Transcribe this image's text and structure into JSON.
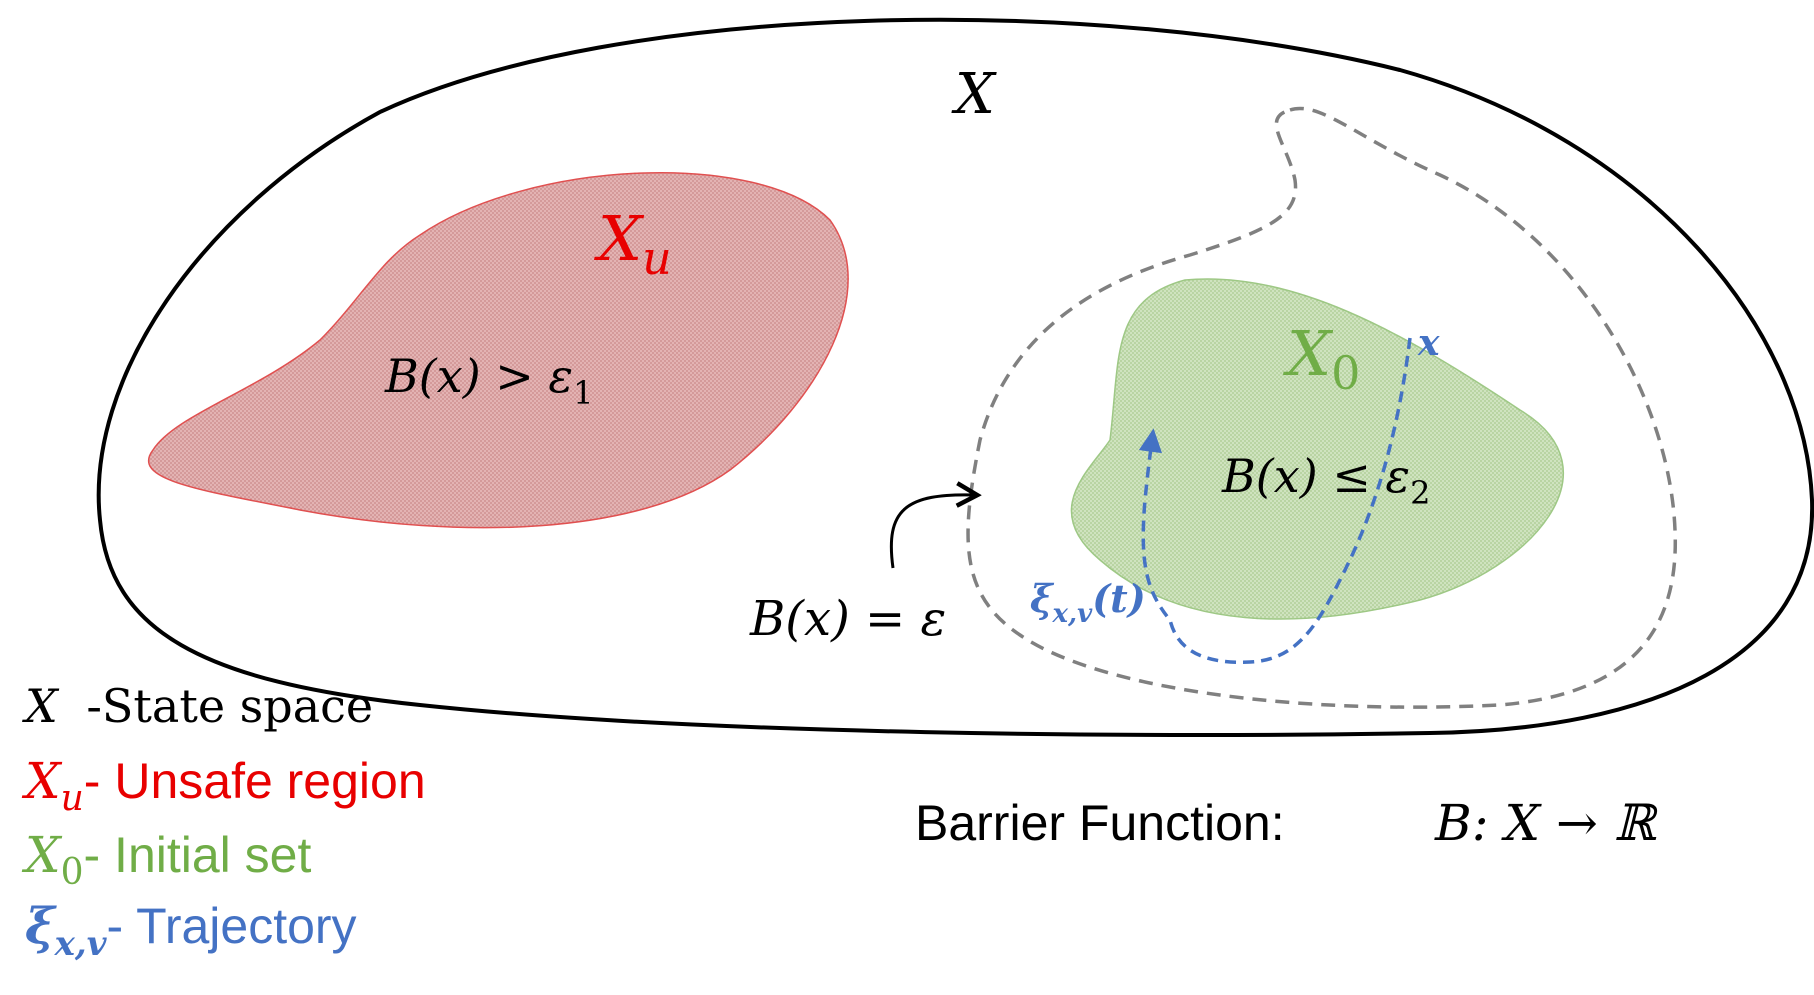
{
  "diagram": {
    "state_space_label": "X",
    "unsafe_region": {
      "symbol": "X",
      "subscript": "u",
      "condition_lhs": "B(x) > ε",
      "condition_subscript": "1"
    },
    "initial_set": {
      "symbol": "X",
      "subscript": "0",
      "condition_lhs": "B(x) ≤ ε",
      "condition_subscript": "2"
    },
    "level_set_label": "B(x) = ε",
    "trajectory": {
      "label_symbol": "ξ",
      "label_subscript": "x,v",
      "label_arg": "(t)",
      "end_label": "x"
    }
  },
  "legend": [
    {
      "symbol": "X",
      "subscript": "",
      "text": " -State space"
    },
    {
      "symbol": "X",
      "subscript": "u",
      "text": "- Unsafe region"
    },
    {
      "symbol": "X",
      "subscript": "0",
      "text": "- Initial set"
    },
    {
      "symbol": "ξ",
      "subscript": "x,v",
      "text": "- Trajectory"
    }
  ],
  "barrier_function": {
    "caption": "Barrier Function:",
    "formula": "B: X → ℝ"
  },
  "colors": {
    "outline": "#000000",
    "unsafe": "#e80000",
    "unsafe_fill": "#d9a0a0",
    "initial": "#70ad47",
    "initial_fill": "#c3dbb0",
    "trajectory": "#4472c4",
    "dashed": "#808080"
  }
}
